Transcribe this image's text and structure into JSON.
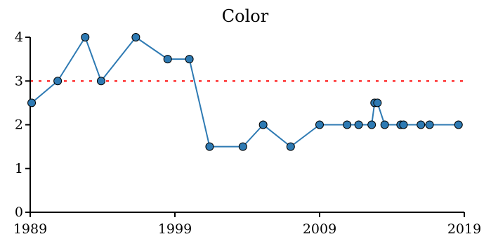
{
  "chart_data": {
    "type": "line",
    "title": "Color",
    "xlabel": "",
    "ylabel": "",
    "xlim": [
      1989,
      2019
    ],
    "ylim": [
      0,
      4
    ],
    "xticks": [
      1989,
      1999,
      2009,
      2019
    ],
    "yticks": [
      0,
      1,
      2,
      3,
      4
    ],
    "grid": false,
    "series": [
      {
        "x": [
          1989.1,
          1990.9,
          1992.8,
          1993.9,
          1996.3,
          1998.5,
          2000.0,
          2001.4,
          2003.7,
          2005.1,
          2007.0,
          2009.0,
          2010.9,
          2011.7,
          2012.6,
          2012.8,
          2013.0,
          2013.5,
          2014.6,
          2014.8,
          2016.0,
          2016.6,
          2018.6
        ],
        "values": [
          2.5,
          3,
          4,
          3,
          4,
          3.5,
          3.5,
          1.5,
          1.5,
          2,
          1.5,
          2,
          2,
          2,
          2,
          2.5,
          2.5,
          2,
          2,
          2,
          2,
          2,
          2
        ],
        "color": "#2e7ab3"
      }
    ],
    "reference_lines": [
      {
        "y": 3,
        "color": "#ff0000",
        "style": "dotted"
      }
    ]
  }
}
